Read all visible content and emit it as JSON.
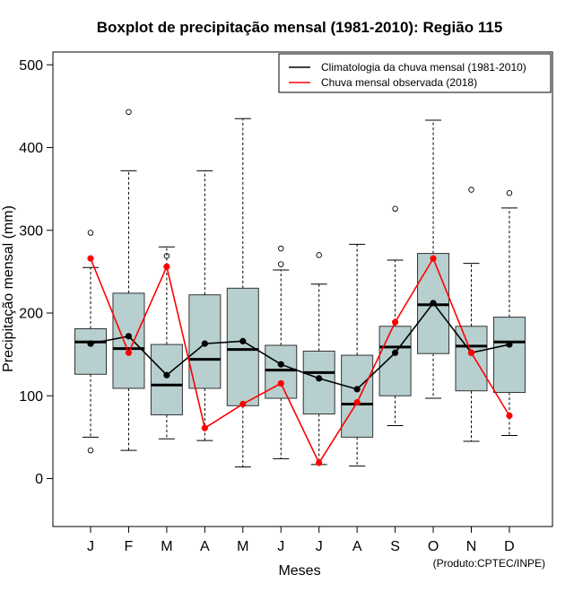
{
  "chart_data": {
    "type": "boxplot",
    "title": "Boxplot de precipitação mensal (1981-2010): Região 115",
    "xlabel": "Meses",
    "ylabel": "Precipitação mensal (mm)",
    "ylim": [
      -60,
      515
    ],
    "yticks": [
      0,
      100,
      200,
      300,
      400,
      500
    ],
    "categories": [
      "J",
      "F",
      "M",
      "A",
      "M",
      "J",
      "J",
      "A",
      "S",
      "O",
      "N",
      "D"
    ],
    "boxes": [
      {
        "whisker_low": 50,
        "q1": 126,
        "median": 165,
        "q3": 181,
        "whisker_high": 255,
        "outliers": [
          297,
          34
        ]
      },
      {
        "whisker_low": 34,
        "q1": 109,
        "median": 157,
        "q3": 224,
        "whisker_high": 372,
        "outliers": [
          443
        ]
      },
      {
        "whisker_low": 48,
        "q1": 77,
        "median": 113,
        "q3": 162,
        "whisker_high": 280,
        "outliers": [
          269
        ]
      },
      {
        "whisker_low": 46,
        "q1": 109,
        "median": 144,
        "q3": 222,
        "whisker_high": 372,
        "outliers": []
      },
      {
        "whisker_low": 14,
        "q1": 88,
        "median": 156,
        "q3": 230,
        "whisker_high": 435,
        "outliers": []
      },
      {
        "whisker_low": 24,
        "q1": 97,
        "median": 131,
        "q3": 161,
        "whisker_high": 252,
        "outliers": [
          278,
          259
        ]
      },
      {
        "whisker_low": 17,
        "q1": 78,
        "median": 128,
        "q3": 154,
        "whisker_high": 235,
        "outliers": [
          270
        ]
      },
      {
        "whisker_low": 15,
        "q1": 50,
        "median": 90,
        "q3": 149,
        "whisker_high": 283,
        "outliers": []
      },
      {
        "whisker_low": 64,
        "q1": 100,
        "median": 159,
        "q3": 184,
        "whisker_high": 264,
        "outliers": [
          326
        ]
      },
      {
        "whisker_low": 97,
        "q1": 151,
        "median": 210,
        "q3": 272,
        "whisker_high": 433,
        "outliers": []
      },
      {
        "whisker_low": 45,
        "q1": 106,
        "median": 160,
        "q3": 184,
        "whisker_high": 260,
        "outliers": [
          349
        ]
      },
      {
        "whisker_low": 52,
        "q1": 104,
        "median": 165,
        "q3": 195,
        "whisker_high": 327,
        "outliers": [
          345
        ]
      }
    ],
    "series": [
      {
        "name": "Climatologia da chuva mensal (1981-2010)",
        "color": "#000000",
        "values": [
          163,
          172,
          125,
          163,
          166,
          138,
          121,
          108,
          152,
          212,
          152,
          162
        ]
      },
      {
        "name": "Chuva mensal observada (2018)",
        "color": "#ff0000",
        "values": [
          266,
          152,
          256,
          61,
          90,
          115,
          19,
          92,
          189,
          266,
          152,
          76
        ]
      }
    ],
    "box_fill": "#b7cfcf",
    "legend_position": "top-right",
    "credit": "(Produto:CPTEC/INPE)"
  }
}
